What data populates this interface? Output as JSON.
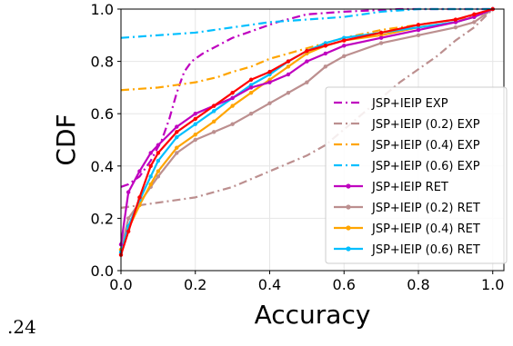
{
  "stray_text": ".24",
  "chart_data": {
    "type": "line",
    "xlabel": "Accuracy",
    "ylabel": "CDF",
    "xlim": [
      0,
      1.03
    ],
    "ylim": [
      0,
      1.0
    ],
    "xticks": [
      0.0,
      0.2,
      0.4,
      0.6,
      0.8,
      1.0
    ],
    "xtick_labels": [
      "0.0",
      "0.2",
      "0.4",
      "0.6",
      "0.8",
      "1.0"
    ],
    "yticks": [
      0.0,
      0.2,
      0.4,
      0.6,
      0.8,
      1.0
    ],
    "ytick_labels": [
      "0.0",
      "0.2",
      "0.4",
      "0.6",
      "0.8",
      "1.0"
    ],
    "grid": true,
    "legend_position": "lower-right",
    "series": [
      {
        "name": "JSP+IEIP EXP",
        "color": "#bf00bf",
        "style": "dashdot",
        "marker": false,
        "points": [
          [
            0,
            0.32
          ],
          [
            0.02,
            0.33
          ],
          [
            0.05,
            0.36
          ],
          [
            0.08,
            0.42
          ],
          [
            0.11,
            0.5
          ],
          [
            0.13,
            0.58
          ],
          [
            0.15,
            0.68
          ],
          [
            0.17,
            0.76
          ],
          [
            0.19,
            0.8
          ],
          [
            0.22,
            0.83
          ],
          [
            0.26,
            0.86
          ],
          [
            0.3,
            0.89
          ],
          [
            0.36,
            0.92
          ],
          [
            0.42,
            0.95
          ],
          [
            0.5,
            0.98
          ],
          [
            0.6,
            0.99
          ],
          [
            0.75,
            1.0
          ],
          [
            1.0,
            1.0
          ]
        ]
      },
      {
        "name": "JSP+IEIP (0.2) EXP",
        "color": "#bc8f8f",
        "style": "dashdot",
        "marker": false,
        "points": [
          [
            0,
            0.24
          ],
          [
            0.1,
            0.26
          ],
          [
            0.2,
            0.28
          ],
          [
            0.25,
            0.3
          ],
          [
            0.3,
            0.32
          ],
          [
            0.35,
            0.35
          ],
          [
            0.4,
            0.38
          ],
          [
            0.45,
            0.41
          ],
          [
            0.5,
            0.44
          ],
          [
            0.55,
            0.48
          ],
          [
            0.6,
            0.54
          ],
          [
            0.65,
            0.6
          ],
          [
            0.7,
            0.66
          ],
          [
            0.75,
            0.72
          ],
          [
            0.8,
            0.77
          ],
          [
            0.85,
            0.82
          ],
          [
            0.9,
            0.88
          ],
          [
            0.95,
            0.93
          ],
          [
            1.0,
            1.0
          ]
        ]
      },
      {
        "name": "JSP+IEIP (0.4) EXP",
        "color": "#ffa500",
        "style": "dashdot",
        "marker": false,
        "points": [
          [
            0,
            0.69
          ],
          [
            0.1,
            0.7
          ],
          [
            0.2,
            0.72
          ],
          [
            0.26,
            0.74
          ],
          [
            0.3,
            0.76
          ],
          [
            0.35,
            0.78
          ],
          [
            0.4,
            0.81
          ],
          [
            0.5,
            0.85
          ],
          [
            0.6,
            0.89
          ],
          [
            0.7,
            0.92
          ],
          [
            0.8,
            0.94
          ],
          [
            0.9,
            0.96
          ],
          [
            0.97,
            0.98
          ],
          [
            1.0,
            1.0
          ]
        ]
      },
      {
        "name": "JSP+IEIP (0.6) EXP",
        "color": "#00bfff",
        "style": "dashdot",
        "marker": false,
        "points": [
          [
            0,
            0.89
          ],
          [
            0.1,
            0.9
          ],
          [
            0.2,
            0.91
          ],
          [
            0.3,
            0.93
          ],
          [
            0.4,
            0.95
          ],
          [
            0.5,
            0.96
          ],
          [
            0.6,
            0.97
          ],
          [
            0.7,
            0.99
          ],
          [
            0.8,
            1.0
          ],
          [
            1.0,
            1.0
          ]
        ]
      },
      {
        "name": "JSP+IEIP RET",
        "color": "#bf00bf",
        "style": "solid",
        "marker": true,
        "points": [
          [
            0,
            0.1
          ],
          [
            0.02,
            0.3
          ],
          [
            0.05,
            0.38
          ],
          [
            0.08,
            0.45
          ],
          [
            0.1,
            0.48
          ],
          [
            0.15,
            0.55
          ],
          [
            0.2,
            0.6
          ],
          [
            0.25,
            0.63
          ],
          [
            0.3,
            0.66
          ],
          [
            0.35,
            0.7
          ],
          [
            0.4,
            0.72
          ],
          [
            0.45,
            0.75
          ],
          [
            0.5,
            0.8
          ],
          [
            0.55,
            0.83
          ],
          [
            0.6,
            0.86
          ],
          [
            0.7,
            0.89
          ],
          [
            0.8,
            0.92
          ],
          [
            0.9,
            0.95
          ],
          [
            0.95,
            0.97
          ],
          [
            1.0,
            1.0
          ]
        ]
      },
      {
        "name": "JSP+IEIP (0.2) RET",
        "color": "#bc8f8f",
        "style": "solid",
        "marker": true,
        "points": [
          [
            0,
            0.08
          ],
          [
            0.02,
            0.2
          ],
          [
            0.05,
            0.26
          ],
          [
            0.08,
            0.32
          ],
          [
            0.1,
            0.36
          ],
          [
            0.15,
            0.45
          ],
          [
            0.2,
            0.5
          ],
          [
            0.25,
            0.53
          ],
          [
            0.3,
            0.56
          ],
          [
            0.35,
            0.6
          ],
          [
            0.4,
            0.64
          ],
          [
            0.45,
            0.68
          ],
          [
            0.5,
            0.72
          ],
          [
            0.55,
            0.78
          ],
          [
            0.6,
            0.82
          ],
          [
            0.7,
            0.87
          ],
          [
            0.8,
            0.9
          ],
          [
            0.9,
            0.93
          ],
          [
            0.95,
            0.95
          ],
          [
            1.0,
            1.0
          ]
        ]
      },
      {
        "name": "JSP+IEIP (0.4) RET",
        "color": "#ffa500",
        "style": "solid",
        "marker": true,
        "points": [
          [
            0,
            0.08
          ],
          [
            0.02,
            0.16
          ],
          [
            0.05,
            0.25
          ],
          [
            0.08,
            0.33
          ],
          [
            0.1,
            0.38
          ],
          [
            0.15,
            0.47
          ],
          [
            0.2,
            0.52
          ],
          [
            0.25,
            0.57
          ],
          [
            0.3,
            0.63
          ],
          [
            0.35,
            0.68
          ],
          [
            0.4,
            0.73
          ],
          [
            0.45,
            0.78
          ],
          [
            0.5,
            0.83
          ],
          [
            0.55,
            0.86
          ],
          [
            0.6,
            0.88
          ],
          [
            0.7,
            0.9
          ],
          [
            0.8,
            0.93
          ],
          [
            0.9,
            0.95
          ],
          [
            0.95,
            0.97
          ],
          [
            1.0,
            1.0
          ]
        ]
      },
      {
        "name": "JSP+IEIP (0.6) RET",
        "color": "#00bfff",
        "style": "solid",
        "marker": true,
        "points": [
          [
            0,
            0.07
          ],
          [
            0.02,
            0.17
          ],
          [
            0.05,
            0.27
          ],
          [
            0.08,
            0.36
          ],
          [
            0.1,
            0.42
          ],
          [
            0.15,
            0.51
          ],
          [
            0.2,
            0.56
          ],
          [
            0.25,
            0.61
          ],
          [
            0.3,
            0.66
          ],
          [
            0.35,
            0.71
          ],
          [
            0.4,
            0.75
          ],
          [
            0.45,
            0.8
          ],
          [
            0.5,
            0.84
          ],
          [
            0.55,
            0.87
          ],
          [
            0.6,
            0.89
          ],
          [
            0.7,
            0.91
          ],
          [
            0.8,
            0.93
          ],
          [
            0.9,
            0.95
          ],
          [
            0.95,
            0.97
          ],
          [
            1.0,
            1.0
          ]
        ]
      },
      {
        "name": "",
        "color": "#ff0000",
        "style": "solid",
        "marker": true,
        "in_legend": false,
        "points": [
          [
            0,
            0.06
          ],
          [
            0.02,
            0.15
          ],
          [
            0.05,
            0.28
          ],
          [
            0.08,
            0.4
          ],
          [
            0.1,
            0.45
          ],
          [
            0.15,
            0.53
          ],
          [
            0.2,
            0.58
          ],
          [
            0.25,
            0.63
          ],
          [
            0.3,
            0.68
          ],
          [
            0.35,
            0.73
          ],
          [
            0.4,
            0.76
          ],
          [
            0.45,
            0.8
          ],
          [
            0.5,
            0.84
          ],
          [
            0.55,
            0.86
          ],
          [
            0.6,
            0.88
          ],
          [
            0.7,
            0.91
          ],
          [
            0.8,
            0.94
          ],
          [
            0.9,
            0.96
          ],
          [
            0.95,
            0.98
          ],
          [
            1.0,
            1.0
          ]
        ]
      }
    ]
  }
}
